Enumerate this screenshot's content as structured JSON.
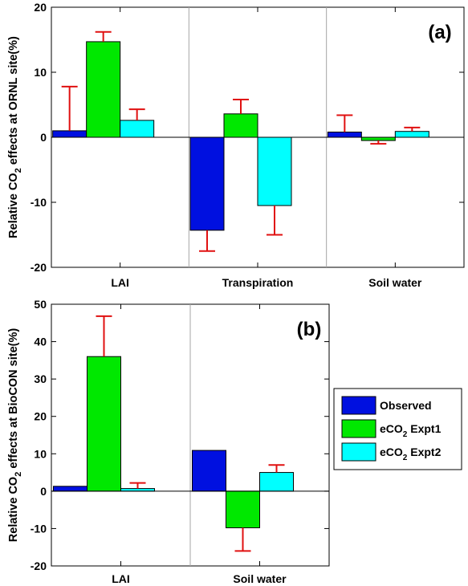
{
  "chart_data": [
    {
      "type": "bar",
      "panel_label": "(a)",
      "ylabel_pre": "Relative CO",
      "ylabel_sub": "2",
      "ylabel_post": " effects at ORNL site(%)",
      "categories": [
        "LAI",
        "Transpiration",
        "Soil water"
      ],
      "ylim": [
        -20,
        20
      ],
      "yticks": [
        -20,
        -10,
        0,
        10,
        20
      ],
      "series": [
        {
          "name": "Observed",
          "color": "#0010e0",
          "values": [
            1,
            -14.3,
            0.8
          ],
          "errors": [
            6.8,
            3.2,
            2.6
          ]
        },
        {
          "name": "eCO2 Expt1",
          "color": "#00e800",
          "values": [
            14.7,
            3.6,
            -0.5
          ],
          "errors": [
            1.5,
            2.2,
            0.5
          ]
        },
        {
          "name": "eCO2 Expt2",
          "color": "#00ffff",
          "values": [
            2.6,
            -10.5,
            0.9
          ],
          "errors": [
            1.7,
            4.5,
            0.6
          ]
        }
      ]
    },
    {
      "type": "bar",
      "panel_label": "(b)",
      "ylabel_pre": "Relative CO",
      "ylabel_sub": "2",
      "ylabel_post": " effects at BioCON site(%)",
      "categories": [
        "LAI",
        "Soil water"
      ],
      "ylim": [
        -20,
        50
      ],
      "yticks": [
        -20,
        -10,
        0,
        10,
        20,
        30,
        40,
        50
      ],
      "series": [
        {
          "name": "Observed",
          "color": "#0010e0",
          "values": [
            1.3,
            10.9
          ],
          "errors": [
            0,
            0
          ]
        },
        {
          "name": "eCO2 Expt1",
          "color": "#00e800",
          "values": [
            36,
            -9.8
          ],
          "errors": [
            10.8,
            6.2
          ]
        },
        {
          "name": "eCO2 Expt2",
          "color": "#00ffff",
          "values": [
            0.7,
            5
          ],
          "errors": [
            1.5,
            2
          ]
        }
      ]
    }
  ],
  "legend": {
    "items": [
      {
        "pre": "Observed",
        "sub": "",
        "post": "",
        "color": "#0010e0"
      },
      {
        "pre": "eCO",
        "sub": "2",
        "post": " Expt1",
        "color": "#00e800"
      },
      {
        "pre": "eCO",
        "sub": "2",
        "post": " Expt2",
        "color": "#00ffff"
      }
    ]
  },
  "errorbar_color": "#e01010"
}
